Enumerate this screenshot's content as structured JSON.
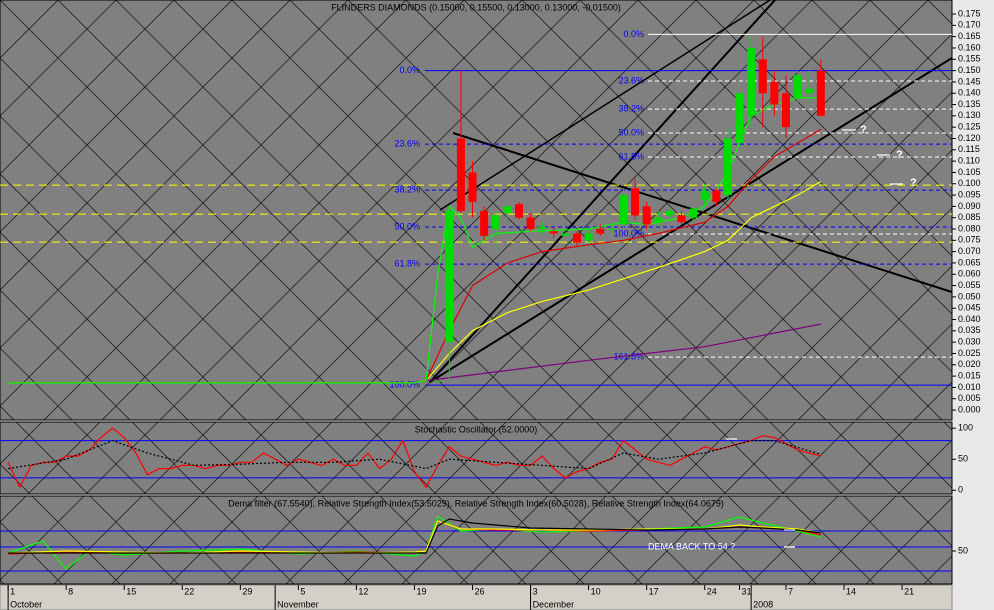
{
  "chart_data": [
    {
      "type": "candlestick",
      "title": "FLINDERS DIAMONDS (0.15000, 0.15500, 0.13000, 0.13000, -0.01500)",
      "xlim": [
        -0.7,
        81.3
      ],
      "xticks": [
        {
          "value": 0,
          "label": "1"
        },
        {
          "value": 5,
          "label": "8"
        },
        {
          "value": 10,
          "label": "15"
        },
        {
          "value": 15,
          "label": "22"
        },
        {
          "value": 20,
          "label": "29"
        },
        {
          "value": 25,
          "label": "5"
        },
        {
          "value": 30,
          "label": "12"
        },
        {
          "value": 35,
          "label": "19"
        },
        {
          "value": 40,
          "label": "26"
        },
        {
          "value": 45,
          "label": "3"
        },
        {
          "value": 50,
          "label": "10"
        },
        {
          "value": 55,
          "label": "17"
        },
        {
          "value": 60,
          "label": "24"
        },
        {
          "value": 63,
          "label": "31"
        },
        {
          "value": 67,
          "label": "7"
        },
        {
          "value": 72,
          "label": "14"
        },
        {
          "value": 77,
          "label": "21"
        }
      ],
      "month_labels": [
        {
          "value": 0,
          "label": "October"
        },
        {
          "value": 23,
          "label": "November"
        },
        {
          "value": 45,
          "label": "December"
        },
        {
          "value": 64,
          "label": "2008"
        }
      ],
      "ylim": [
        -0.0044,
        0.1812
      ],
      "yticks": [
        {
          "value": 0,
          "label": "0.000"
        },
        {
          "value": 0.005,
          "label": "0.005"
        },
        {
          "value": 0.01,
          "label": "0.010"
        },
        {
          "value": 0.015,
          "label": "0.015"
        },
        {
          "value": 0.02,
          "label": "0.020"
        },
        {
          "value": 0.025,
          "label": "0.025"
        },
        {
          "value": 0.03,
          "label": "0.030"
        },
        {
          "value": 0.035,
          "label": "0.035"
        },
        {
          "value": 0.04,
          "label": "0.040"
        },
        {
          "value": 0.045,
          "label": "0.045"
        },
        {
          "value": 0.05,
          "label": "0.050"
        },
        {
          "value": 0.055,
          "label": "0.055"
        },
        {
          "value": 0.06,
          "label": "0.060"
        },
        {
          "value": 0.065,
          "label": "0.065"
        },
        {
          "value": 0.07,
          "label": "0.070"
        },
        {
          "value": 0.075,
          "label": "0.075"
        },
        {
          "value": 0.08,
          "label": "0.080"
        },
        {
          "value": 0.085,
          "label": "0.085"
        },
        {
          "value": 0.09,
          "label": "0.090"
        },
        {
          "value": 0.095,
          "label": "0.095"
        },
        {
          "value": 0.1,
          "label": "0.100"
        },
        {
          "value": 0.105,
          "label": "0.105"
        },
        {
          "value": 0.11,
          "label": "0.110"
        },
        {
          "value": 0.115,
          "label": "0.115"
        },
        {
          "value": 0.12,
          "label": "0.120"
        },
        {
          "value": 0.125,
          "label": "0.125"
        },
        {
          "value": 0.13,
          "label": "0.130"
        },
        {
          "value": 0.135,
          "label": "0.135"
        },
        {
          "value": 0.14,
          "label": "0.140"
        },
        {
          "value": 0.145,
          "label": "0.145"
        },
        {
          "value": 0.15,
          "label": "0.150"
        },
        {
          "value": 0.155,
          "label": "0.155"
        },
        {
          "value": 0.16,
          "label": "0.160"
        },
        {
          "value": 0.165,
          "label": "0.165"
        },
        {
          "value": 0.17,
          "label": "0.170"
        },
        {
          "value": 0.175,
          "label": "0.175"
        }
      ],
      "up_color": "#00dd00",
      "down_color": "#ff0000",
      "candles": {
        "x": [
          37,
          38,
          39,
          40,
          41,
          42,
          43,
          44,
          45,
          46,
          47,
          48,
          49,
          50,
          51,
          52,
          53,
          54,
          55,
          56,
          57,
          58,
          59,
          60,
          61,
          62,
          63,
          64,
          65,
          66,
          67,
          68,
          69,
          70
        ],
        "open": [
          0.013,
          0.03,
          0.12,
          0.105,
          0.088,
          0.08,
          0.087,
          0.091,
          0.085,
          0.08,
          0.079,
          0.077,
          0.078,
          0.075,
          0.08,
          0.08,
          0.082,
          0.098,
          0.09,
          0.083,
          0.086,
          0.086,
          0.085,
          0.093,
          0.097,
          0.095,
          0.118,
          0.13,
          0.155,
          0.145,
          0.14,
          0.138,
          0.14,
          0.15
        ],
        "high": [
          0.013,
          0.09,
          0.15,
          0.11,
          0.09,
          0.088,
          0.091,
          0.092,
          0.087,
          0.083,
          0.081,
          0.079,
          0.079,
          0.08,
          0.082,
          0.082,
          0.098,
          0.102,
          0.092,
          0.088,
          0.09,
          0.088,
          0.09,
          0.1,
          0.098,
          0.125,
          0.145,
          0.165,
          0.165,
          0.15,
          0.148,
          0.15,
          0.15,
          0.155
        ],
        "low": [
          0.012,
          0.013,
          0.087,
          0.085,
          0.075,
          0.07,
          0.083,
          0.084,
          0.079,
          0.078,
          0.076,
          0.075,
          0.072,
          0.074,
          0.077,
          0.078,
          0.08,
          0.084,
          0.08,
          0.081,
          0.084,
          0.082,
          0.083,
          0.09,
          0.09,
          0.093,
          0.115,
          0.125,
          0.125,
          0.13,
          0.12,
          0.135,
          0.136,
          0.13
        ],
        "close": [
          0.013,
          0.088,
          0.088,
          0.092,
          0.077,
          0.086,
          0.09,
          0.085,
          0.08,
          0.081,
          0.078,
          0.078,
          0.074,
          0.078,
          0.078,
          0.08,
          0.095,
          0.086,
          0.082,
          0.085,
          0.088,
          0.083,
          0.089,
          0.097,
          0.092,
          0.12,
          0.14,
          0.16,
          0.14,
          0.135,
          0.125,
          0.148,
          0.142,
          0.13
        ]
      },
      "lines": [
        {
          "color": "#800080",
          "x": [
            36,
            50,
            60,
            70
          ],
          "values": [
            0.013,
            0.022,
            0.028,
            0.038
          ]
        },
        {
          "color": "#ffff00",
          "x": [
            0,
            35,
            36,
            38,
            40,
            43,
            46,
            50,
            53,
            56,
            60,
            62,
            64,
            66,
            68,
            70
          ],
          "values": [
            0.012,
            0.012,
            0.013,
            0.025,
            0.035,
            0.043,
            0.048,
            0.053,
            0.058,
            0.063,
            0.07,
            0.075,
            0.085,
            0.09,
            0.095,
            0.101
          ]
        },
        {
          "color": "#e00000",
          "x": [
            0,
            35,
            36,
            38,
            40,
            43,
            46,
            50,
            53,
            56,
            60,
            62,
            64,
            66,
            68,
            70
          ],
          "values": [
            0.012,
            0.012,
            0.013,
            0.035,
            0.055,
            0.065,
            0.07,
            0.073,
            0.075,
            0.078,
            0.083,
            0.09,
            0.102,
            0.112,
            0.118,
            0.124
          ]
        },
        {
          "color": "#00ff00",
          "x": [
            0,
            35,
            36,
            37,
            38,
            39,
            40,
            42,
            45,
            50,
            53,
            55,
            58,
            60,
            62,
            63,
            64,
            66,
            68,
            70
          ],
          "values": [
            0.012,
            0.012,
            0.013,
            0.06,
            0.09,
            0.085,
            0.072,
            0.078,
            0.079,
            0.08,
            0.083,
            0.082,
            0.085,
            0.09,
            0.105,
            0.118,
            0.13,
            0.135,
            0.138,
            0.138
          ]
        }
      ],
      "levels": [
        {
          "value": 0.0994,
          "color": "#ffff00"
        },
        {
          "value": 0.0866,
          "color": "#ffff00"
        },
        {
          "value": 0.0742,
          "color": "#ffff00"
        }
      ],
      "fib_sets": [
        {
          "color": "#0000ff",
          "levels": [
            {
              "label": "0.0%",
              "value": 0.15
            },
            {
              "label": "23.6%",
              "value": 0.1175
            },
            {
              "label": "38.2%",
              "value": 0.0972
            },
            {
              "label": "50.0%",
              "value": 0.0809
            },
            {
              "label": "61.8%",
              "value": 0.0645
            },
            {
              "label": "100.0%",
              "value": 0.011
            }
          ]
        },
        {
          "color": "#ffffff",
          "levels": [
            {
              "label": "0.0%",
              "value": 0.166
            },
            {
              "label": "23.6%",
              "value": 0.1454
            },
            {
              "label": "38.2%",
              "value": 0.133
            },
            {
              "label": "50.0%",
              "value": 0.1224
            },
            {
              "label": "61.8%",
              "value": 0.1118
            },
            {
              "label": "100.0%",
              "value": 0.0778
            },
            {
              "label": "161.8%",
              "value": 0.0234
            }
          ]
        }
      ],
      "annotations": [
        "?",
        "?",
        "?"
      ]
    },
    {
      "type": "line",
      "title": "Stochastic Oscillator (52.0000)",
      "ylim": [
        -6,
        110
      ],
      "yticks": [
        0,
        50,
        100
      ],
      "levels": [
        {
          "value": 80,
          "color": "#0000ff"
        },
        {
          "value": 20,
          "color": "#0000ff"
        }
      ],
      "lines": [
        {
          "color": "#ff0000",
          "x": [
            0,
            1,
            2,
            3,
            4,
            5,
            6,
            7,
            8,
            9,
            10,
            11,
            12,
            13,
            14,
            15,
            16,
            17,
            18,
            19,
            20,
            21,
            22,
            23,
            24,
            25,
            26,
            27,
            28,
            29,
            30,
            31,
            32,
            33,
            34,
            35,
            36,
            37,
            38,
            39,
            40,
            41,
            42,
            43,
            44,
            45,
            46,
            47,
            48,
            49,
            50,
            51,
            52,
            53,
            54,
            55,
            56,
            57,
            58,
            59,
            60,
            61,
            62,
            63,
            64,
            65,
            66,
            67,
            68,
            69,
            70
          ],
          "values": [
            45,
            5,
            40,
            45,
            45,
            55,
            55,
            65,
            85,
            100,
            85,
            60,
            25,
            35,
            35,
            40,
            40,
            35,
            40,
            40,
            45,
            45,
            60,
            50,
            40,
            50,
            45,
            40,
            50,
            40,
            40,
            60,
            35,
            50,
            80,
            30,
            5,
            40,
            70,
            55,
            50,
            45,
            40,
            45,
            40,
            40,
            55,
            35,
            20,
            30,
            35,
            45,
            50,
            80,
            65,
            50,
            45,
            40,
            50,
            60,
            70,
            65,
            70,
            75,
            80,
            88,
            85,
            75,
            65,
            60,
            55
          ]
        },
        {
          "color": "#000000",
          "dash": true,
          "x": [
            0,
            5,
            9,
            12,
            16,
            20,
            24,
            28,
            32,
            36,
            38,
            42,
            46,
            50,
            53,
            56,
            60,
            64,
            66,
            70
          ],
          "values": [
            35,
            50,
            80,
            60,
            40,
            42,
            45,
            45,
            50,
            35,
            50,
            45,
            40,
            35,
            60,
            50,
            60,
            80,
            80,
            58
          ]
        }
      ]
    },
    {
      "type": "line",
      "title": "Dema filter (67.5540), Relative Strength Index(53.5029), Relative Strength Index(60.5028), Relative Strength Index(64.0679)",
      "ylim": [
        17,
        105
      ],
      "yticks": [
        50
      ],
      "levels": [
        {
          "value": 70,
          "color": "#0000ff"
        },
        {
          "value": 54,
          "color": "#0000ff"
        },
        {
          "value": 30,
          "color": "#0000ff"
        }
      ],
      "lines": [
        {
          "color": "#00ff00",
          "x": [
            0,
            3,
            5,
            7,
            10,
            15,
            20,
            25,
            30,
            35,
            36,
            37,
            39,
            42,
            46,
            50,
            55,
            60,
            63,
            65,
            68,
            70
          ],
          "values": [
            48,
            60,
            32,
            50,
            46,
            50,
            52,
            47,
            50,
            45,
            50,
            85,
            70,
            72,
            69,
            70,
            72,
            74,
            84,
            78,
            70,
            64
          ]
        },
        {
          "color": "#ff0000",
          "x": [
            0,
            5,
            10,
            15,
            20,
            25,
            30,
            35,
            36,
            37,
            39,
            42,
            46,
            50,
            55,
            60,
            63,
            65,
            68,
            70
          ],
          "values": [
            47,
            49,
            48,
            48,
            49,
            48,
            49,
            48,
            50,
            80,
            72,
            71,
            71,
            70,
            71,
            72,
            74,
            73,
            71,
            66
          ]
        },
        {
          "color": "#ffff00",
          "x": [
            0,
            5,
            10,
            15,
            20,
            25,
            30,
            35,
            36,
            37,
            39,
            42,
            46,
            50,
            55,
            60,
            63,
            65,
            68,
            70
          ],
          "values": [
            48,
            50,
            49,
            48,
            50,
            49,
            48,
            49,
            50,
            80,
            72,
            72,
            71,
            71,
            72,
            72,
            76,
            74,
            72,
            68
          ]
        },
        {
          "color": "#000000",
          "x": [
            0,
            35,
            36,
            37,
            38,
            40,
            45,
            50,
            55,
            60,
            63,
            65,
            68,
            70
          ],
          "values": [
            48,
            48,
            48,
            75,
            82,
            78,
            73,
            72,
            71,
            72,
            74,
            73,
            71,
            68
          ]
        }
      ],
      "annotations": [
        "DEMA BACK TO 54 ?"
      ]
    }
  ]
}
